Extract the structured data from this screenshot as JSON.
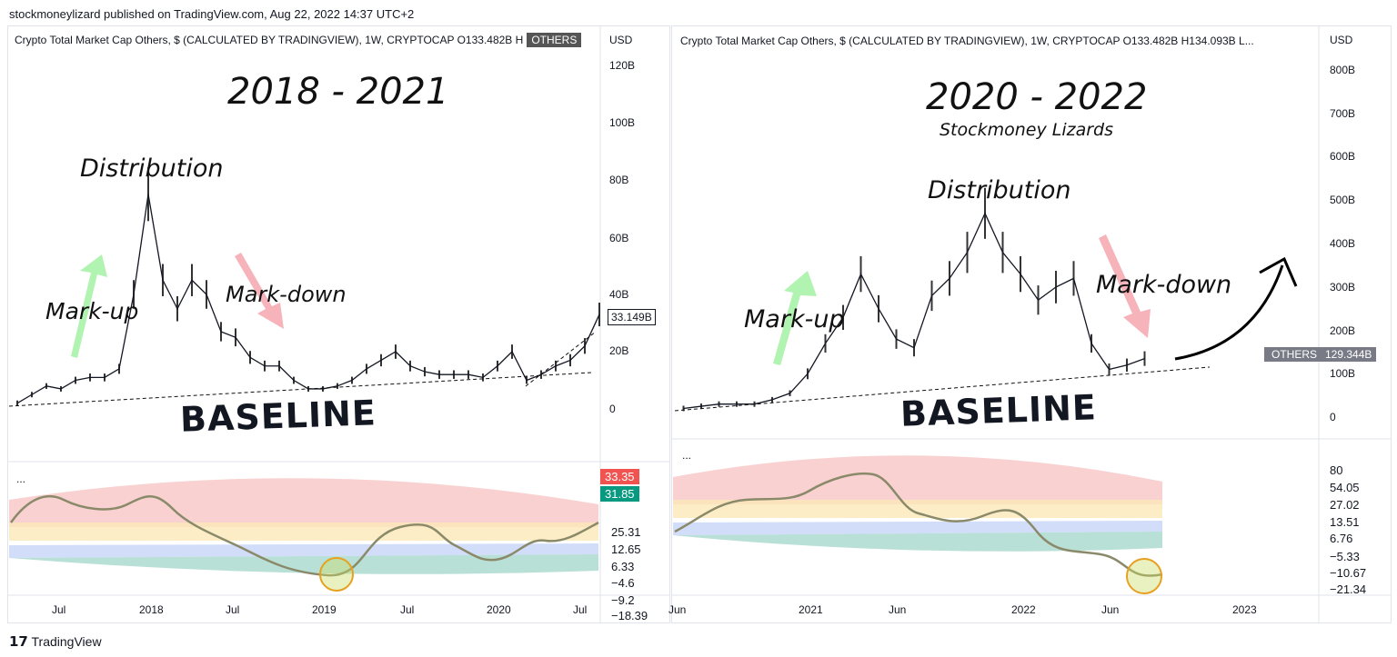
{
  "published": "stockmoneylizard published on TradingView.com, Aug 22, 2022 14:37 UTC+2",
  "footer_logo": "TradingView",
  "colors": {
    "price_line": "#131722",
    "up": "#089981",
    "down": "#f23645",
    "pink_band": "#f7c6c6",
    "yellow_band": "#fbe8b8",
    "blue_band": "#c5d5f7",
    "teal_band": "#a8d8cc",
    "arrow_up": "#9ef09e",
    "arrow_down": "#f4a0a8"
  },
  "left": {
    "header": "Crypto Total Market Cap Others, $ (CALCULATED BY TRADINGVIEW), 1W, CRYPTOCAP  O133.482B  H",
    "symbol_badge": "OTHERS",
    "currency": "USD",
    "title": "2018 - 2021",
    "annotations": {
      "distribution": "Distribution",
      "markup": "Mark-up",
      "markdown": "Mark-down",
      "baseline": "BASELINE"
    },
    "price_label": "33.149B",
    "indicator_menu": "...",
    "indicator_badges": [
      "33.35",
      "31.85"
    ],
    "indicator_ticks": [
      "25.31",
      "12.65",
      "6.33",
      "−4.6",
      "−9.2",
      "−18.39"
    ],
    "price_ticks": [
      "120B",
      "100B",
      "80B",
      "60B",
      "40B",
      "20B",
      "0"
    ],
    "time_ticks": [
      "Jul",
      "2018",
      "Jul",
      "2019",
      "Jul",
      "2020",
      "Jul"
    ]
  },
  "right": {
    "header": "Crypto Total Market Cap Others, $ (CALCULATED BY TRADINGVIEW), 1W, CRYPTOCAP  O133.482B  H134.093B  L...",
    "currency": "USD",
    "title": "2020 - 2022",
    "subtitle": "Stockmoney Lizards",
    "annotations": {
      "distribution": "Distribution",
      "markup": "Mark-up",
      "markdown": "Mark-down",
      "baseline": "BASELINE"
    },
    "symbol_badge": "OTHERS",
    "price_label": "129.344B",
    "indicator_menu": "...",
    "indicator_ticks": [
      "80",
      "54.05",
      "27.02",
      "13.51",
      "6.76",
      "−5.33",
      "−10.67",
      "−21.34"
    ],
    "price_ticks": [
      "800B",
      "700B",
      "600B",
      "500B",
      "400B",
      "300B",
      "200B",
      "100B",
      "0"
    ],
    "time_ticks": [
      "Jun",
      "2021",
      "Jun",
      "2022",
      "Jun",
      "2023"
    ]
  },
  "chart_data": [
    {
      "type": "line",
      "title": "2018 - 2021",
      "ylabel": "USD",
      "ylim": [
        0,
        120
      ],
      "unit": "B",
      "x": [
        "2017-04",
        "2017-05",
        "2017-06",
        "2017-07",
        "2017-08",
        "2017-09",
        "2017-10",
        "2017-11",
        "2017-12",
        "2018-01",
        "2018-02",
        "2018-03",
        "2018-04",
        "2018-05",
        "2018-06",
        "2018-07",
        "2018-08",
        "2018-09",
        "2018-10",
        "2018-11",
        "2018-12",
        "2019-01",
        "2019-02",
        "2019-03",
        "2019-04",
        "2019-05",
        "2019-06",
        "2019-07",
        "2019-08",
        "2019-09",
        "2019-10",
        "2019-11",
        "2019-12",
        "2020-01",
        "2020-02",
        "2020-03",
        "2020-04",
        "2020-05",
        "2020-06",
        "2020-07",
        "2020-08"
      ],
      "y": [
        2,
        5,
        8,
        7,
        10,
        11,
        11,
        14,
        40,
        75,
        45,
        35,
        45,
        40,
        27,
        25,
        18,
        15,
        15,
        10,
        7,
        7,
        8,
        10,
        14,
        17,
        20,
        15,
        13,
        12,
        12,
        12,
        11,
        15,
        20,
        10,
        12,
        15,
        17,
        22,
        33
      ]
    },
    {
      "type": "line",
      "title": "2020 - 2022",
      "ylabel": "USD",
      "ylim": [
        0,
        850
      ],
      "unit": "B",
      "x": [
        "2020-06",
        "2020-07",
        "2020-08",
        "2020-09",
        "2020-10",
        "2020-11",
        "2020-12",
        "2021-01",
        "2021-02",
        "2021-03",
        "2021-04",
        "2021-05",
        "2021-06",
        "2021-07",
        "2021-08",
        "2021-09",
        "2021-10",
        "2021-11",
        "2021-12",
        "2022-01",
        "2022-02",
        "2022-03",
        "2022-04",
        "2022-05",
        "2022-06",
        "2022-07",
        "2022-08"
      ],
      "y": [
        20,
        25,
        30,
        30,
        30,
        40,
        55,
        100,
        170,
        230,
        330,
        250,
        180,
        160,
        280,
        320,
        380,
        470,
        380,
        330,
        270,
        300,
        320,
        170,
        110,
        120,
        135
      ]
    }
  ]
}
